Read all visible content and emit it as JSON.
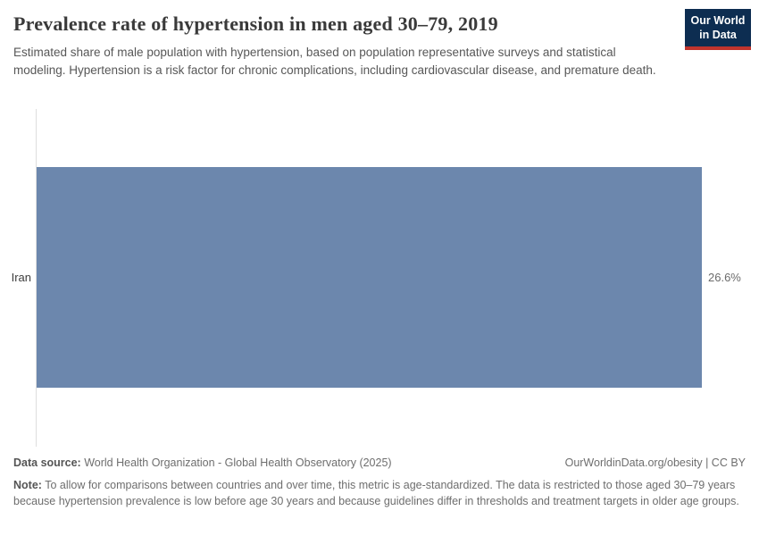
{
  "header": {
    "title": "Prevalence rate of hypertension in men aged 30–79, 2019",
    "subtitle": "Estimated share of male population with hypertension, based on population representative surveys and statistical modeling. Hypertension is a risk factor for chronic complications, including cardiovascular disease, and premature death.",
    "logo": {
      "line1": "Our World",
      "line2": "in Data"
    }
  },
  "chart_data": {
    "type": "bar",
    "orientation": "horizontal",
    "categories": [
      "Iran"
    ],
    "values": [
      26.6
    ],
    "value_labels": [
      "26.6%"
    ],
    "unit": "%",
    "title": "Prevalence rate of hypertension in men aged 30–79, 2019",
    "xlabel": "",
    "ylabel": "",
    "xlim": [
      0,
      26.6
    ],
    "grid": false,
    "legend": "none"
  },
  "footer": {
    "source_label": "Data source:",
    "source_text": " World Health Organization - Global Health Observatory (2025)",
    "link_text": "OurWorldinData.org/obesity | CC BY",
    "note_label": "Note:",
    "note_text": " To allow for comparisons between countries and over time, this metric is age-standardized. The data is restricted to those aged 30–79 years because hypertension prevalence is low before age 30 years and because guidelines differ in thresholds and treatment targets in older age groups."
  },
  "colors": {
    "bar": "#6c87ad",
    "logo_bg": "#0d2d51",
    "logo_accent": "#c0342d",
    "axis_line": "#dedede",
    "title_text": "#3a3a3a",
    "subtitle_text": "#575757",
    "muted_text": "#6e6e6e"
  }
}
